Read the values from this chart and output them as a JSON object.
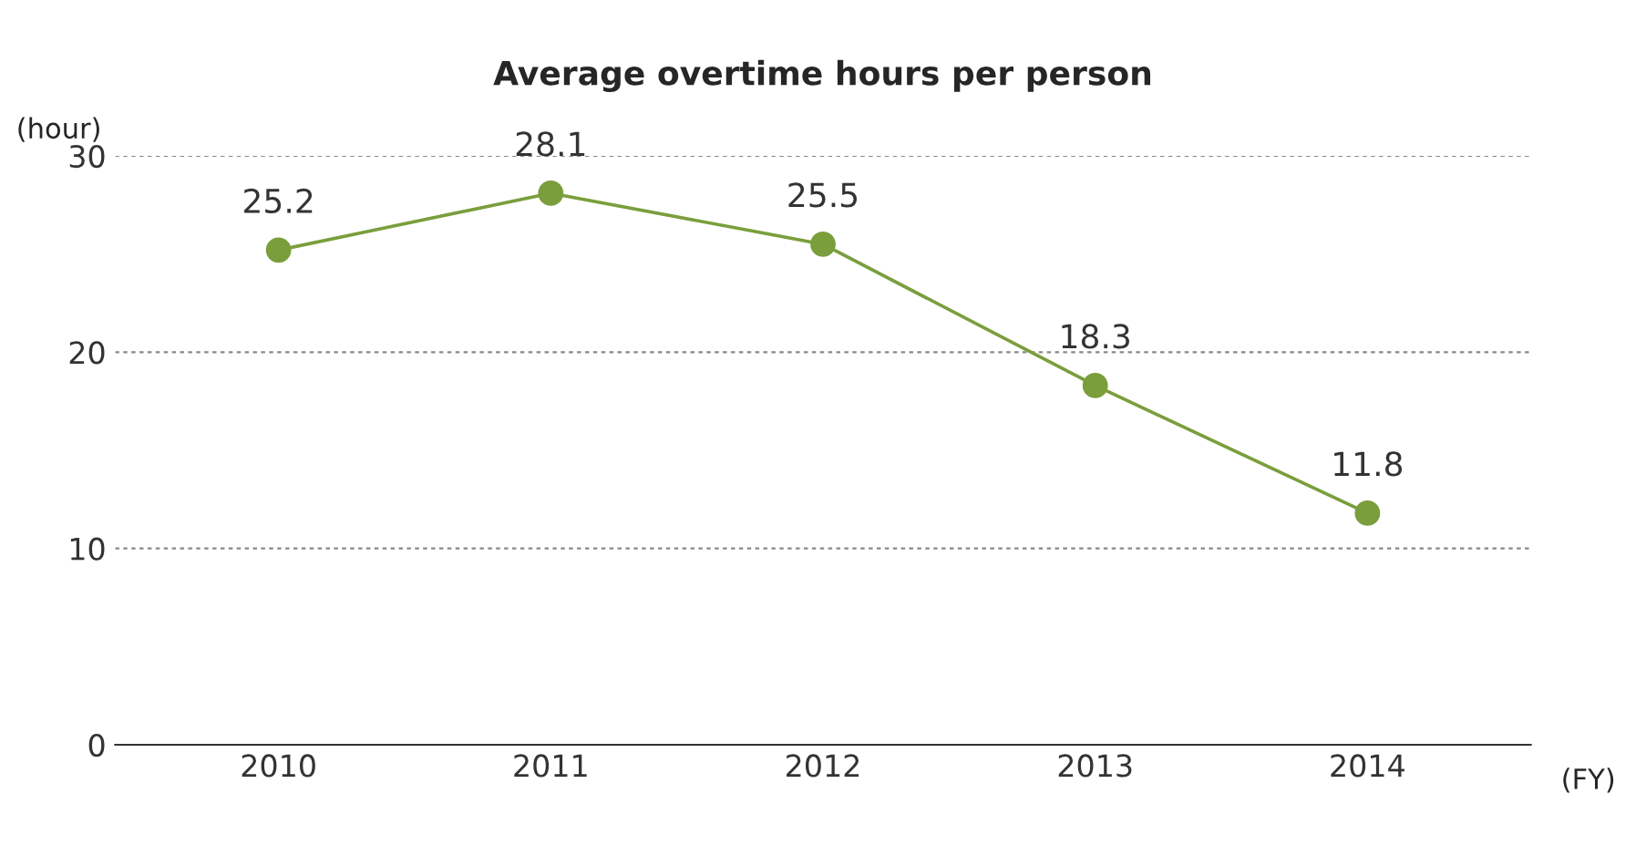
{
  "chart_data": {
    "type": "line",
    "title": "Average overtime hours per person",
    "categories": [
      "2010",
      "2011",
      "2012",
      "2013",
      "2014"
    ],
    "series": [
      {
        "color": "#7a9e3c",
        "values": [
          25.2,
          28.1,
          25.5,
          18.3,
          11.8
        ]
      }
    ],
    "ylabel": "(hour)",
    "xlabel": "(FY)",
    "ylim": [
      0,
      30
    ],
    "yticks": [
      0,
      10,
      20,
      30
    ],
    "grid": "y",
    "marker": "circle",
    "line_style": "solid",
    "data_labels": true
  }
}
